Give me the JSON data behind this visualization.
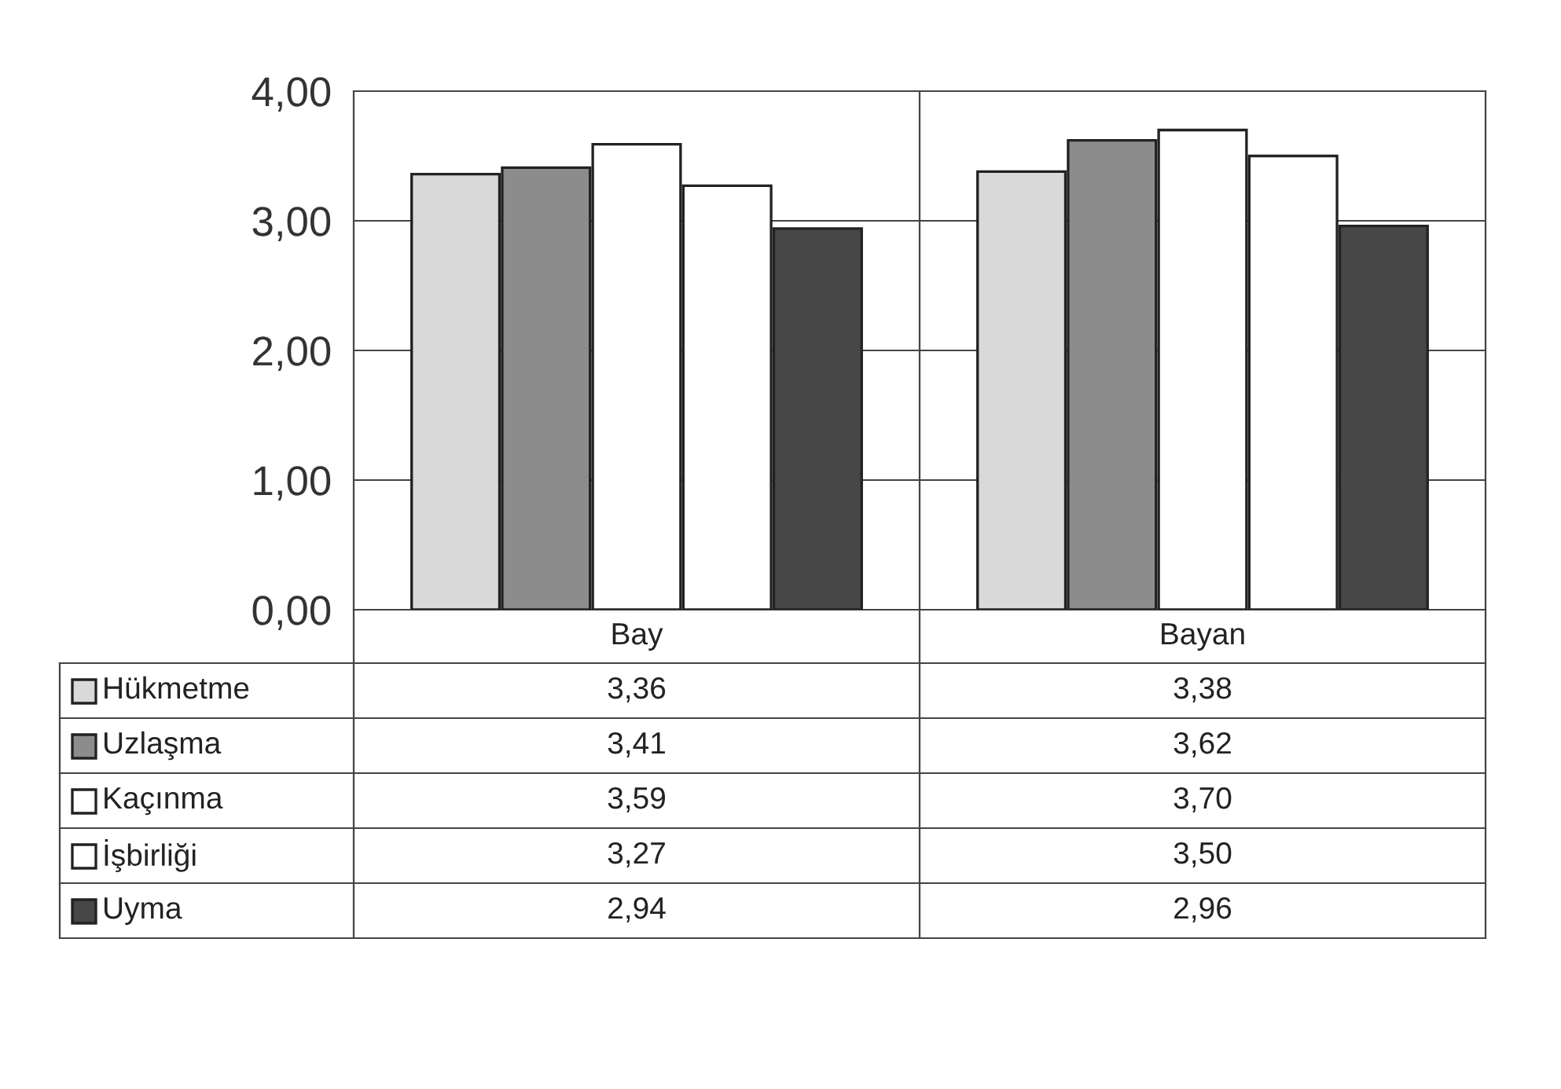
{
  "chart_data": {
    "type": "bar",
    "categories": [
      "Bay",
      "Bayan"
    ],
    "series": [
      {
        "name": "Hükmetme",
        "color": "#d9d9d9",
        "values": [
          3.36,
          3.38
        ],
        "value_labels": [
          "3,36",
          "3,38"
        ]
      },
      {
        "name": "Uzlaşma",
        "color": "#8c8c8c",
        "values": [
          3.41,
          3.62
        ],
        "value_labels": [
          "3,41",
          "3,62"
        ]
      },
      {
        "name": "Kaçınma",
        "color": "#ffffff",
        "values": [
          3.59,
          3.7
        ],
        "value_labels": [
          "3,59",
          "3,70"
        ]
      },
      {
        "name": "İşbirliği",
        "color": "#ffffff",
        "values": [
          3.27,
          3.5
        ],
        "value_labels": [
          "3,27",
          "3,50"
        ]
      },
      {
        "name": "Uyma",
        "color": "#474747",
        "values": [
          2.94,
          2.96
        ],
        "value_labels": [
          "2,94",
          "2,96"
        ]
      }
    ],
    "ylim": [
      0,
      4
    ],
    "yticks": [
      {
        "value": 0,
        "label": "0,00"
      },
      {
        "value": 1,
        "label": "1,00"
      },
      {
        "value": 2,
        "label": "2,00"
      },
      {
        "value": 3,
        "label": "3,00"
      },
      {
        "value": 4,
        "label": "4,00"
      }
    ],
    "grid": "y",
    "legend": "bottom"
  }
}
